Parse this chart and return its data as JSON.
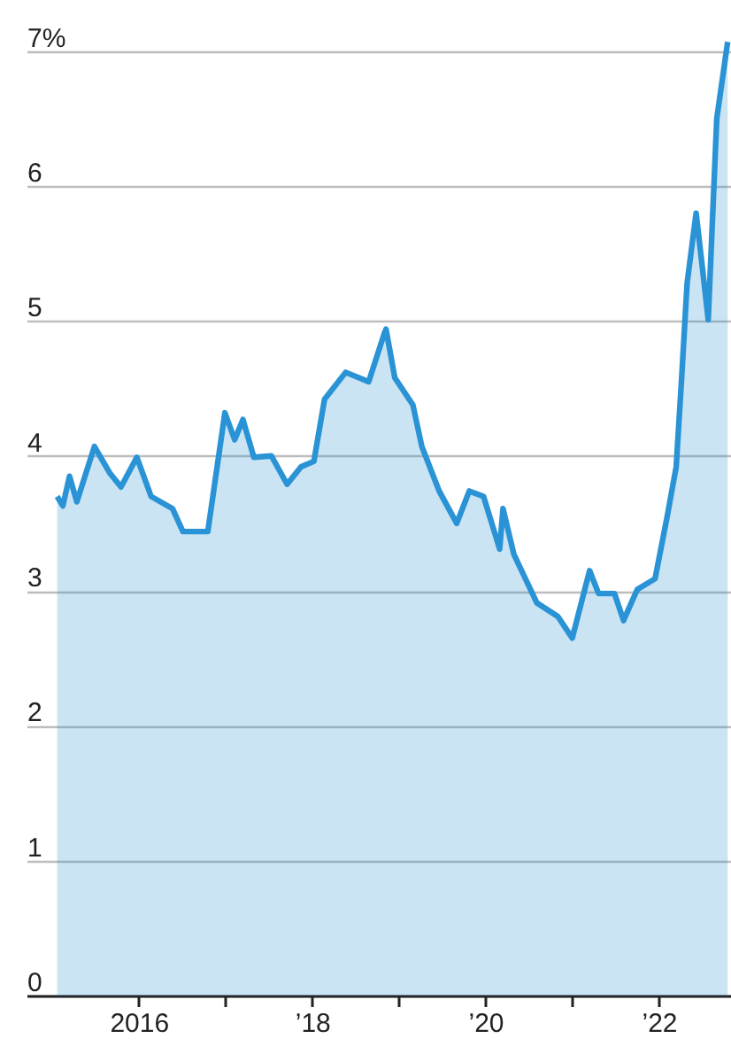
{
  "chart_data": {
    "type": "area",
    "color": "#2a93d5",
    "x": [
      "2015-01-22",
      "2015-02-15",
      "2015-03-15",
      "2015-04-15",
      "2015-06-28",
      "2015-09-02",
      "2015-10-18",
      "2015-12-24",
      "2016-02-22",
      "2016-05-22",
      "2016-07-05",
      "2016-10-18",
      "2016-12-29",
      "2017-02-08",
      "2017-03-15",
      "2017-04-30",
      "2017-07-13",
      "2017-09-17",
      "2017-11-15",
      "2018-01-08",
      "2018-02-22",
      "2018-05-22",
      "2018-08-27",
      "2018-11-01",
      "2018-11-08",
      "2018-12-15",
      "2019-03-01",
      "2019-04-08",
      "2019-06-20",
      "2019-09-02",
      "2019-10-25",
      "2019-12-24",
      "2020-03-01",
      "2020-03-15",
      "2020-04-30",
      "2020-08-05",
      "2020-11-01",
      "2021-01-01",
      "2021-03-15",
      "2021-04-22",
      "2021-06-28",
      "2021-08-05",
      "2021-10-02",
      "2021-12-16",
      "2022-02-07",
      "2022-03-15",
      "2022-04-07",
      "2022-04-30",
      "2022-06-07",
      "2022-07-05",
      "2022-07-28",
      "2022-09-02",
      "2022-10-18"
    ],
    "values": [
      3.7,
      3.63,
      3.85,
      3.66,
      4.07,
      3.87,
      3.77,
      3.99,
      3.7,
      3.61,
      3.44,
      3.44,
      4.32,
      4.12,
      4.27,
      3.99,
      4.0,
      3.79,
      3.92,
      3.96,
      4.42,
      4.62,
      4.55,
      4.91,
      4.94,
      4.58,
      4.38,
      4.07,
      3.74,
      3.5,
      3.74,
      3.7,
      3.31,
      3.61,
      3.27,
      2.91,
      2.81,
      2.65,
      3.15,
      2.98,
      2.98,
      2.78,
      3.01,
      3.09,
      3.57,
      3.92,
      4.58,
      5.28,
      5.8,
      5.37,
      5.01,
      6.5,
      7.07
    ],
    "xlim": [
      "2014-09-15",
      "2022-11-01"
    ],
    "xticks": [
      {
        "value": "2016-01-01",
        "label": "2016"
      },
      {
        "value": "2017-01-01",
        "label": null
      },
      {
        "value": "2018-01-01",
        "label": "’18"
      },
      {
        "value": "2019-01-01",
        "label": null
      },
      {
        "value": "2020-01-01",
        "label": "’20"
      },
      {
        "value": "2021-01-01",
        "label": null
      },
      {
        "value": "2022-01-01",
        "label": "’22"
      }
    ],
    "ylim": [
      0,
      7.38
    ],
    "yticks": [
      0,
      1,
      2,
      3,
      4,
      5,
      6,
      {
        "value": 7,
        "label": "7%"
      }
    ],
    "grid": "y"
  }
}
